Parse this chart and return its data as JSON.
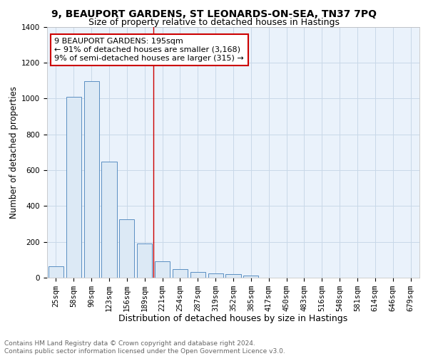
{
  "title": "9, BEAUPORT GARDENS, ST LEONARDS-ON-SEA, TN37 7PQ",
  "subtitle": "Size of property relative to detached houses in Hastings",
  "xlabel": "Distribution of detached houses by size in Hastings",
  "ylabel": "Number of detached properties",
  "categories": [
    "25sqm",
    "58sqm",
    "90sqm",
    "123sqm",
    "156sqm",
    "189sqm",
    "221sqm",
    "254sqm",
    "287sqm",
    "319sqm",
    "352sqm",
    "385sqm",
    "417sqm",
    "450sqm",
    "483sqm",
    "516sqm",
    "548sqm",
    "581sqm",
    "614sqm",
    "646sqm",
    "679sqm"
  ],
  "values": [
    62,
    1010,
    1095,
    648,
    326,
    190,
    91,
    48,
    30,
    23,
    18,
    13,
    0,
    0,
    0,
    0,
    0,
    0,
    0,
    0,
    0
  ],
  "bar_color_fill": "#dce9f5",
  "bar_color_edge": "#5a8fc2",
  "annotation_text": "9 BEAUPORT GARDENS: 195sqm\n← 91% of detached houses are smaller (3,168)\n9% of semi-detached houses are larger (315) →",
  "annotation_box_color": "#ffffff",
  "annotation_box_edge": "#cc0000",
  "vline_color": "#cc0000",
  "vline_x_idx": 5.5,
  "ylim": [
    0,
    1400
  ],
  "yticks": [
    0,
    200,
    400,
    600,
    800,
    1000,
    1200,
    1400
  ],
  "grid_color": "#c8d8e8",
  "background_color": "#eaf2fb",
  "footer_line1": "Contains HM Land Registry data © Crown copyright and database right 2024.",
  "footer_line2": "Contains public sector information licensed under the Open Government Licence v3.0.",
  "title_fontsize": 10,
  "subtitle_fontsize": 9,
  "xlabel_fontsize": 9,
  "ylabel_fontsize": 8.5,
  "tick_fontsize": 7.5,
  "annotation_fontsize": 8,
  "footer_fontsize": 6.5
}
